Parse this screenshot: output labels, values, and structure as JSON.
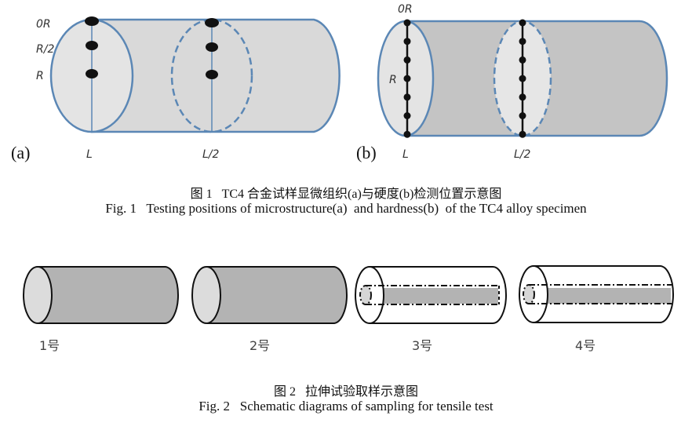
{
  "figure1": {
    "panel_a": {
      "tag": "(a)",
      "radial_labels": [
        "0R",
        "R/2",
        "R"
      ],
      "axial_labels": [
        "L",
        "L/2"
      ]
    },
    "panel_b": {
      "tag": "(b)",
      "radial_labels": [
        "0R",
        "R"
      ],
      "axial_labels": [
        "L",
        "L/2"
      ]
    },
    "caption_cn": "图 1   TC4 合金试样显微组织(a)与硬度(b)检测位置示意图",
    "caption_en": "Fig. 1   Testing positions of microstructure(a)  and hardness(b)  of the TC4 alloy specimen"
  },
  "figure2": {
    "specimens": [
      {
        "label": "1号",
        "type": "solid"
      },
      {
        "label": "2号",
        "type": "solid"
      },
      {
        "label": "3号",
        "type": "core"
      },
      {
        "label": "4号",
        "type": "core"
      }
    ],
    "caption_cn": "图 2   拉伸试验取样示意图",
    "caption_en": "Fig. 2   Schematic diagrams of sampling for tensile test"
  },
  "colors": {
    "outline_blue": "#5b87b5",
    "body_gray_a": "#d9d9d9",
    "body_gray_b": "#c4c4c4",
    "face_light": "#e6e6e6",
    "specimen_gray": "#b3b3b3"
  }
}
